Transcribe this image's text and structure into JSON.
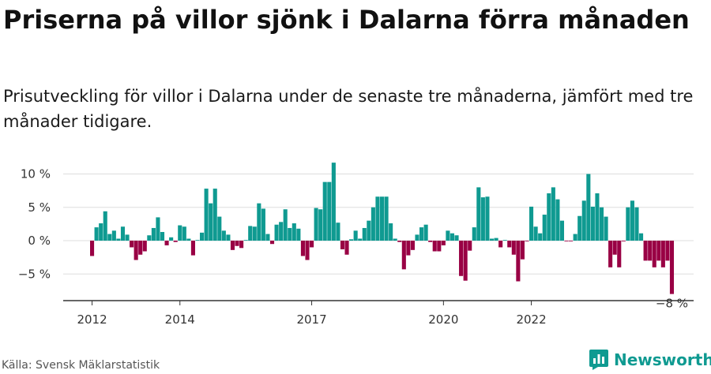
{
  "header": {
    "title": "Priserna på villor sjönk i Dalarna förra månaden",
    "subtitle": "Prisutveckling för villor i Dalarna under de senaste tre månaderna, jämfört med tre månader tidigare."
  },
  "footer": {
    "source": "Källa: Svensk Mäklarstatistik",
    "brand": "Newsworthy"
  },
  "colors": {
    "positive": "#0f9a91",
    "negative": "#990044",
    "grid": "#dddddd",
    "axis": "#333333"
  },
  "chart_data": {
    "type": "bar",
    "title": "Priserna på villor sjönk i Dalarna förra månaden",
    "subtitle": "Prisutveckling för villor i Dalarna under de senaste tre månaderna, jämfört med tre månader tidigare.",
    "xlabel": "",
    "ylabel": "",
    "y_unit": "%",
    "ylim": [
      -9,
      12
    ],
    "y_ticks": [
      -5,
      0,
      5,
      10
    ],
    "y_tick_labels": [
      "−5 %",
      "0 %",
      "5 %",
      "10 %"
    ],
    "x_ticks": [
      "2012",
      "2014",
      "2017",
      "2020",
      "2022"
    ],
    "x_tick_start_index": [
      0,
      20,
      50,
      80,
      100
    ],
    "start_month": "2012-01",
    "last_label": "−8 %",
    "grid": true,
    "legend": "none",
    "values": [
      -2.3,
      2.0,
      2.6,
      4.4,
      1.0,
      1.5,
      0.3,
      2.1,
      0.9,
      -1.0,
      -2.9,
      -2.1,
      -1.6,
      0.8,
      1.9,
      3.5,
      1.3,
      -0.7,
      0.5,
      -0.2,
      2.3,
      2.1,
      0.3,
      -2.2,
      0.1,
      1.2,
      7.8,
      5.6,
      7.8,
      3.6,
      1.5,
      0.9,
      -1.4,
      -0.8,
      -1.1,
      0.1,
      2.2,
      2.1,
      5.6,
      4.8,
      1.0,
      -0.5,
      2.4,
      2.8,
      4.7,
      1.9,
      2.6,
      1.8,
      -2.3,
      -2.9,
      -1.0,
      4.9,
      4.7,
      8.8,
      8.8,
      11.7,
      2.7,
      -1.3,
      -2.1,
      0.2,
      1.5,
      0.3,
      1.9,
      3.0,
      5.0,
      6.6,
      6.6,
      6.6,
      2.6,
      0.3,
      -0.2,
      -4.3,
      -2.2,
      -1.4,
      0.9,
      2.0,
      2.4,
      -0.2,
      -1.6,
      -1.6,
      -0.7,
      1.5,
      1.1,
      0.8,
      -5.3,
      -6.0,
      -1.5,
      2.0,
      8.0,
      6.5,
      6.6,
      0.3,
      0.4,
      -1.0,
      0.1,
      -1.0,
      -2.1,
      -6.1,
      -2.8,
      -0.1,
      5.1,
      2.1,
      1.1,
      3.9,
      7.1,
      8.0,
      6.2,
      3.0,
      -0.1,
      -0.1,
      1.0,
      3.7,
      6.0,
      10.0,
      5.1,
      7.1,
      5.0,
      3.6,
      -4.0,
      -2.1,
      -4.0,
      -0.1,
      5.0,
      6.0,
      5.0,
      1.1,
      -3.0,
      -3.0,
      -4.0,
      -3.0,
      -4.0,
      -3.0,
      -8.0
    ]
  }
}
